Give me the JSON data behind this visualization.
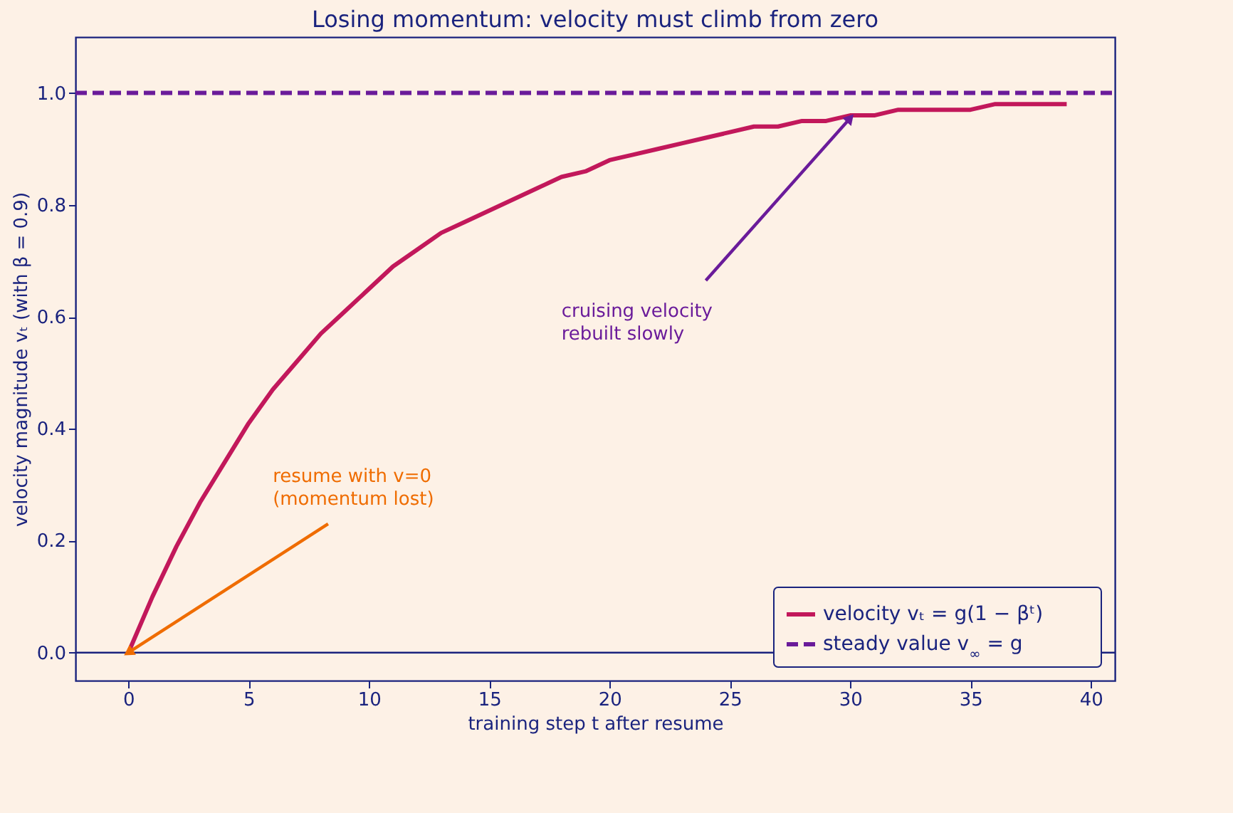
{
  "chart_data": {
    "type": "line",
    "title": "Losing momentum: velocity must climb from zero",
    "xlabel": "training step t after resume",
    "ylabel": "velocity magnitude vₜ (with β = 0.9)",
    "x": [
      0,
      1,
      2,
      3,
      4,
      5,
      6,
      7,
      8,
      9,
      10,
      11,
      12,
      13,
      14,
      15,
      16,
      17,
      18,
      19,
      20,
      21,
      22,
      23,
      24,
      25,
      26,
      27,
      28,
      29,
      30,
      31,
      32,
      33,
      34,
      35,
      36,
      37,
      38,
      39
    ],
    "series": [
      {
        "name": "velocity vₜ = g(1 − βᵗ)",
        "color": "#c2185b",
        "line_style": "solid",
        "values": [
          0,
          0.1,
          0.19,
          0.27,
          0.34,
          0.41,
          0.47,
          0.52,
          0.57,
          0.61,
          0.65,
          0.69,
          0.72,
          0.75,
          0.77,
          0.79,
          0.81,
          0.83,
          0.85,
          0.86,
          0.88,
          0.89,
          0.9,
          0.91,
          0.92,
          0.93,
          0.94,
          0.94,
          0.95,
          0.95,
          0.96,
          0.96,
          0.97,
          0.97,
          0.97,
          0.97,
          0.98,
          0.98,
          0.98,
          0.98
        ]
      },
      {
        "name": "steady value v$_{∞}$ = g",
        "color": "#6a1b9a",
        "line_style": "dashed",
        "x": [
          -2.2,
          41
        ],
        "values": [
          1,
          1
        ]
      }
    ],
    "ref_lines": [
      {
        "axis": "y",
        "value": 0,
        "color": "#1a237e"
      }
    ],
    "annotations": [
      {
        "text": "resume with v=0\n(momentum lost)",
        "x": 0,
        "y": 0
      },
      {
        "text": "cruising velocity\nrebuilt slowly",
        "x": 30,
        "y": 0.955
      }
    ],
    "xlim": [
      -2.2,
      41
    ],
    "ylim": [
      -0.05,
      1.1
    ],
    "xticks": [
      0,
      5,
      10,
      15,
      20,
      25,
      30,
      35,
      40
    ],
    "yticks": [
      {
        "value": 0,
        "label": "0.0"
      },
      0.2,
      0.4,
      0.6,
      0.8,
      {
        "value": 1,
        "label": "1.0"
      }
    ],
    "grid": false,
    "marker": "none",
    "legend": "bottom right"
  }
}
